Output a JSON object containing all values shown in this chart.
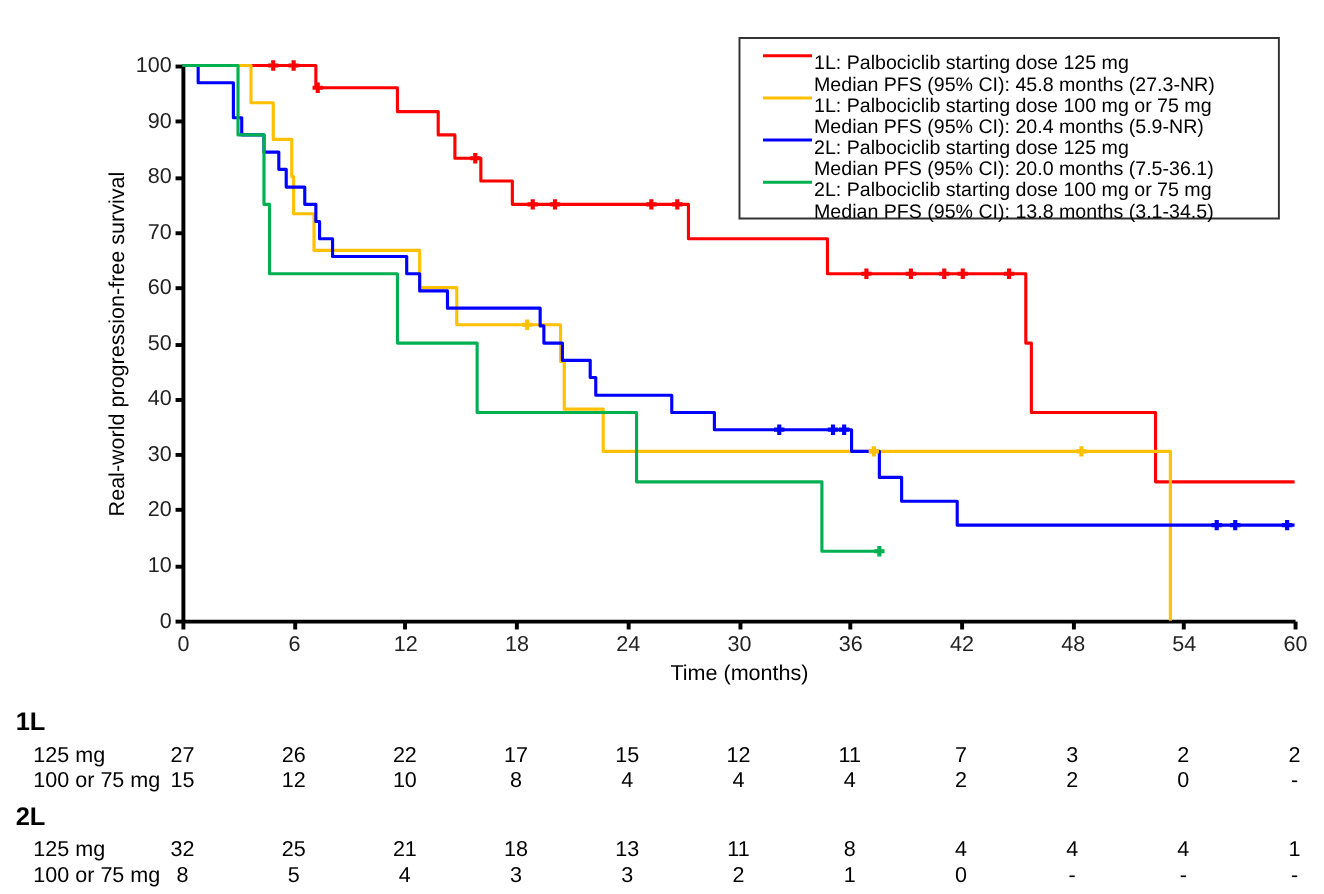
{
  "chart_data": {
    "type": "step",
    "xlabel": "Time (months)",
    "ylabel": "Real-world progression-free survival",
    "xlim": [
      0,
      60
    ],
    "xticks": [
      0,
      6,
      12,
      18,
      24,
      30,
      36,
      42,
      48,
      54,
      60
    ],
    "ylim": [
      0,
      100
    ],
    "yticks": [
      0,
      10,
      20,
      30,
      40,
      50,
      60,
      70,
      80,
      90,
      100
    ],
    "grid": false,
    "legend": "top right",
    "line_style": "solid",
    "marker": "none",
    "series": [
      {
        "name": "1L: Palbociclib starting dose 125 mg\nMedian PFS (95% CI): 45.8 months (27.3-NR)",
        "color": "#ff0000",
        "x": [
          0,
          7.2,
          11.6,
          13.8,
          14.7,
          16.1,
          17.8,
          27.3,
          34.8,
          45.5,
          45.8,
          52.5,
          60
        ],
        "values": [
          100,
          96,
          91.7,
          87.5,
          83.3,
          79.2,
          75,
          68.8,
          62.5,
          50,
          37.5,
          25,
          25
        ]
      },
      {
        "name": "1L: Palbociclib starting dose 100 mg or 75 mg\nMedian PFS (95% CI): 20.4 months (5.9-NR)",
        "color": "#ffc000",
        "x": [
          0,
          3.7,
          4.9,
          5.9,
          6.0,
          7.1,
          12.8,
          14.8,
          20.4,
          20.6,
          22.7,
          53.3
        ],
        "values": [
          100,
          93.3,
          86.7,
          80,
          73.3,
          66.7,
          60,
          53.3,
          46.7,
          38.1,
          30.5,
          0
        ]
      },
      {
        "name": "2L: Palbociclib starting dose 125 mg\nMedian PFS (95% CI): 20.0 months (7.5-36.1)",
        "color": "#0000ff",
        "x": [
          0,
          0.85,
          2.75,
          3.2,
          4.4,
          5.2,
          5.6,
          6.6,
          7.2,
          7.4,
          8.1,
          12.1,
          12.8,
          14.3,
          19.3,
          19.5,
          20.5,
          22.0,
          22.3,
          26.4,
          28.7,
          36.1,
          37.6,
          38.8,
          41.8,
          60
        ],
        "values": [
          100,
          96.9,
          90.6,
          87.5,
          84.4,
          81.3,
          78.1,
          75,
          71.9,
          68.8,
          65.6,
          62.5,
          59.4,
          56.3,
          53.1,
          50,
          46.9,
          43.8,
          40.6,
          37.5,
          34.4,
          30.5,
          25.8,
          21.5,
          17.2,
          17.2
        ]
      },
      {
        "name": "2L: Palbociclib starting dose 100 mg or 75 mg\nMedian PFS (95% CI): 13.8 months (3.1-34.5)",
        "color": "#00b050",
        "x": [
          0,
          3.0,
          4.4,
          4.7,
          11.6,
          15.9,
          24.5,
          34.5,
          37.6
        ],
        "values": [
          100,
          87.5,
          75,
          62.5,
          50,
          37.5,
          25,
          12.5,
          12.5
        ]
      },
      {
        "type": "scatter",
        "marker": "cross",
        "color": "#ff0000",
        "x": [
          4.9,
          6.0,
          7.3,
          15.8,
          18.9,
          20.1,
          25.3,
          26.7,
          36.9,
          39.3,
          41.1,
          42.1,
          44.6
        ],
        "values": [
          100,
          100,
          96,
          83.3,
          75,
          75,
          75,
          75,
          62.5,
          62.5,
          62.5,
          62.5,
          62.5
        ]
      },
      {
        "type": "scatter",
        "marker": "cross",
        "color": "#ffc000",
        "x": [
          18.6,
          37.3,
          48.5
        ],
        "values": [
          53.3,
          30.5,
          30.5
        ]
      },
      {
        "type": "scatter",
        "marker": "cross",
        "color": "#0000ff",
        "x": [
          32.2,
          35.1,
          35.7,
          55.8,
          56.8,
          59.6
        ],
        "values": [
          34.4,
          34.4,
          34.4,
          17.2,
          17.2,
          17.2
        ]
      },
      {
        "type": "scatter",
        "marker": "cross",
        "color": "#00b050",
        "x": [
          37.6
        ],
        "values": [
          12.5
        ]
      }
    ],
    "annotations": [
      "1L",
      "125 mg\t27\t26\t22\t17\t15\t12\t11\t7\t3\t2\t2",
      "100 or 75 mg\t15\t12\t10\t8\t4\t4\t4\t2\t2\t0\t-",
      "2L",
      "125 mg\t32\t25\t21\t18\t13\t11\t8\t4\t4\t4\t1",
      "100 or 75 mg\t8\t5\t4\t3\t3\t2\t1\t0\t-\t-\t-"
    ]
  }
}
